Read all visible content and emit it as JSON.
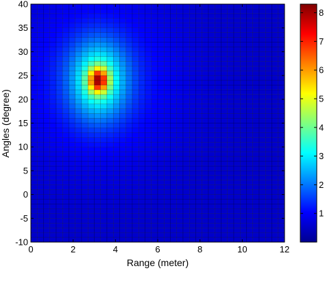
{
  "chart_data": {
    "type": "heatmap",
    "xlabel": "Range (meter)",
    "ylabel": "Angles (degree)",
    "xlim": [
      0,
      12
    ],
    "ylim": [
      -10,
      40
    ],
    "x_ticks": [
      "0",
      "2",
      "4",
      "6",
      "8",
      "10",
      "12"
    ],
    "y_ticks": [
      "40",
      "35",
      "30",
      "25",
      "20",
      "15",
      "10",
      "5",
      "0",
      "-5",
      "-10"
    ],
    "colorbar": {
      "range": [
        0,
        8.3
      ],
      "ticks": [
        "1",
        "2",
        "3",
        "4",
        "5",
        "6",
        "7",
        "8"
      ]
    },
    "grid": {
      "x_bins": 40,
      "y_bins": 50,
      "peak": {
        "range": 3.2,
        "angle": 24,
        "value": 8.3
      }
    }
  }
}
